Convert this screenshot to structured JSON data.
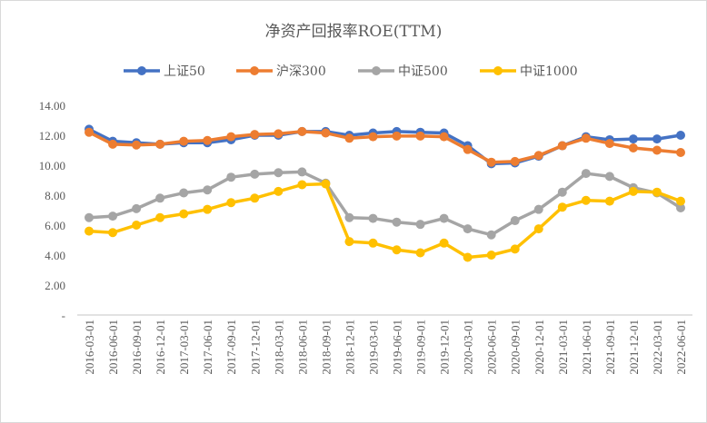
{
  "chart_data": {
    "type": "line",
    "title": "净资产回报率ROE(TTM)",
    "xlabel": "",
    "ylabel": "",
    "ylim": [
      0,
      14
    ],
    "yticks": [
      "-",
      "2.00",
      "4.00",
      "6.00",
      "8.00",
      "10.00",
      "12.00",
      "14.00"
    ],
    "grid": false,
    "legend": "top",
    "categories": [
      "2016-03-01",
      "2016-06-01",
      "2016-09-01",
      "2016-12-01",
      "2017-03-01",
      "2017-06-01",
      "2017-09-01",
      "2017-12-01",
      "2018-03-01",
      "2018-06-01",
      "2018-09-01",
      "2018-12-01",
      "2019-03-01",
      "2019-06-01",
      "2019-09-01",
      "2019-12-01",
      "2020-03-01",
      "2020-06-01",
      "2020-09-01",
      "2020-12-01",
      "2021-03-01",
      "2021-06-01",
      "2021-09-01",
      "2021-12-01",
      "2022-03-01",
      "2022-06-01"
    ],
    "series": [
      {
        "name": "上证50",
        "color": "#4472C4",
        "values": [
          12.4,
          11.6,
          11.5,
          11.4,
          11.5,
          11.5,
          11.7,
          12.0,
          12.0,
          12.25,
          12.25,
          12.0,
          12.15,
          12.25,
          12.2,
          12.15,
          11.3,
          10.1,
          10.15,
          10.6,
          11.3,
          11.9,
          11.7,
          11.75,
          11.75,
          12.0
        ]
      },
      {
        "name": "沪深300",
        "color": "#ED7D31",
        "values": [
          12.2,
          11.4,
          11.35,
          11.4,
          11.6,
          11.65,
          11.9,
          12.05,
          12.1,
          12.25,
          12.15,
          11.8,
          11.9,
          11.95,
          11.95,
          11.9,
          11.05,
          10.2,
          10.25,
          10.65,
          11.3,
          11.8,
          11.45,
          11.15,
          11.0,
          10.85
        ]
      },
      {
        "name": "中证500",
        "color": "#A5A5A5",
        "values": [
          6.5,
          6.6,
          7.1,
          7.8,
          8.15,
          8.35,
          9.2,
          9.4,
          9.5,
          9.55,
          8.8,
          6.5,
          6.45,
          6.2,
          6.05,
          6.45,
          5.75,
          5.35,
          6.3,
          7.05,
          8.2,
          9.45,
          9.25,
          8.5,
          8.15,
          7.15
        ]
      },
      {
        "name": "中证1000",
        "color": "#FFC000",
        "values": [
          5.6,
          5.5,
          6.0,
          6.5,
          6.75,
          7.05,
          7.5,
          7.8,
          8.25,
          8.7,
          8.75,
          4.9,
          4.8,
          4.35,
          4.15,
          4.8,
          3.85,
          4.0,
          4.4,
          5.75,
          7.2,
          7.65,
          7.6,
          8.25,
          8.2,
          7.6
        ]
      }
    ]
  }
}
